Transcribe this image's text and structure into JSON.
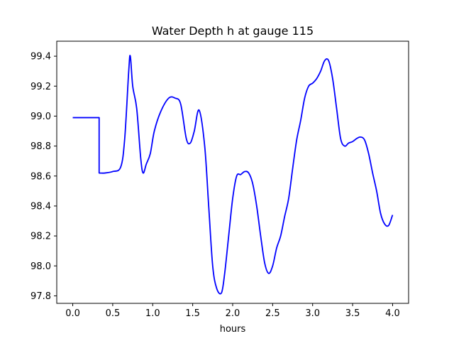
{
  "chart_data": {
    "type": "line",
    "title": "Water Depth h at gauge 115",
    "xlabel": "hours",
    "ylabel": "",
    "xlim": [
      -0.2,
      4.2
    ],
    "ylim": [
      97.75,
      99.5
    ],
    "xticks": [
      0.0,
      0.5,
      1.0,
      1.5,
      2.0,
      2.5,
      3.0,
      3.5,
      4.0
    ],
    "xtick_labels": [
      "0.0",
      "0.5",
      "1.0",
      "1.5",
      "2.0",
      "2.5",
      "3.0",
      "3.5",
      "4.0"
    ],
    "yticks": [
      97.8,
      98.0,
      98.2,
      98.4,
      98.6,
      98.8,
      99.0,
      99.2,
      99.4
    ],
    "ytick_labels": [
      "97.8",
      "98.0",
      "98.2",
      "98.4",
      "98.6",
      "98.8",
      "99.0",
      "99.2",
      "99.4"
    ],
    "grid": false,
    "legend": false,
    "series": [
      {
        "color": "#0000ff",
        "x": [
          0.0,
          0.33,
          0.33,
          0.4,
          0.5,
          0.6,
          0.65,
          0.7,
          0.72,
          0.75,
          0.8,
          0.85,
          0.88,
          0.92,
          0.97,
          1.02,
          1.1,
          1.2,
          1.28,
          1.35,
          1.42,
          1.47,
          1.52,
          1.58,
          1.65,
          1.7,
          1.75,
          1.8,
          1.86,
          1.9,
          1.95,
          2.0,
          2.05,
          2.1,
          2.15,
          2.2,
          2.25,
          2.3,
          2.35,
          2.4,
          2.45,
          2.5,
          2.55,
          2.6,
          2.65,
          2.7,
          2.75,
          2.8,
          2.85,
          2.9,
          2.95,
          3.0,
          3.05,
          3.1,
          3.15,
          3.2,
          3.25,
          3.3,
          3.35,
          3.4,
          3.45,
          3.5,
          3.55,
          3.6,
          3.65,
          3.7,
          3.75,
          3.8,
          3.85,
          3.9,
          3.95,
          4.0
        ],
        "y": [
          98.99,
          98.99,
          98.62,
          98.62,
          98.63,
          98.66,
          98.85,
          99.3,
          99.4,
          99.2,
          99.05,
          98.72,
          98.62,
          98.68,
          98.75,
          98.9,
          99.03,
          99.12,
          99.12,
          99.08,
          98.85,
          98.82,
          98.9,
          99.04,
          98.8,
          98.4,
          98.0,
          97.85,
          97.82,
          97.95,
          98.2,
          98.45,
          98.6,
          98.61,
          98.63,
          98.62,
          98.55,
          98.4,
          98.2,
          98.02,
          97.95,
          98.0,
          98.12,
          98.2,
          98.33,
          98.45,
          98.65,
          98.84,
          98.97,
          99.12,
          99.2,
          99.22,
          99.25,
          99.3,
          99.37,
          99.37,
          99.25,
          99.05,
          98.85,
          98.8,
          98.82,
          98.83,
          98.85,
          98.86,
          98.84,
          98.75,
          98.62,
          98.5,
          98.35,
          98.28,
          98.27,
          98.34
        ]
      }
    ]
  }
}
